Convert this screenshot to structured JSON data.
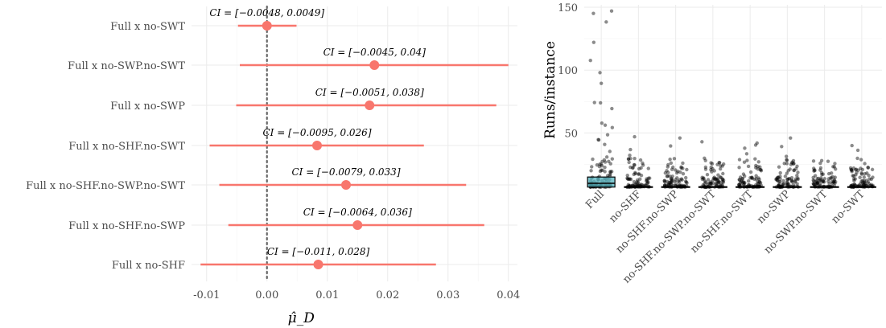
{
  "chart_data": [
    {
      "type": "interval",
      "title": "",
      "xlabel": "μ̂_D",
      "ylabel": "",
      "xlim": [
        -0.0125,
        0.0415
      ],
      "xticks": [
        -0.01,
        0.0,
        0.01,
        0.02,
        0.03,
        0.04
      ],
      "xtick_labels": [
        "-0.01",
        "0.00",
        "0.01",
        "0.02",
        "0.03",
        "0.04"
      ],
      "reference_line": 0,
      "color": "#F8766D",
      "rows": [
        {
          "label": "Full x no-SWT",
          "estimate": 0.0,
          "lower": -0.0048,
          "upper": 0.0049,
          "ci_text": "CI = [−0.0048, 0.0049]"
        },
        {
          "label": "Full x no-SWP.no-SWT",
          "estimate": 0.0178,
          "lower": -0.0045,
          "upper": 0.04,
          "ci_text": "CI = [−0.0045, 0.04]"
        },
        {
          "label": "Full x no-SWP",
          "estimate": 0.017,
          "lower": -0.0051,
          "upper": 0.038,
          "ci_text": "CI = [−0.0051, 0.038]"
        },
        {
          "label": "Full x no-SHF.no-SWT",
          "estimate": 0.0083,
          "lower": -0.0095,
          "upper": 0.026,
          "ci_text": "CI = [−0.0095, 0.026]"
        },
        {
          "label": "Full x no-SHF.no-SWP.no-SWT",
          "estimate": 0.0131,
          "lower": -0.0079,
          "upper": 0.033,
          "ci_text": "CI = [−0.0079, 0.033]"
        },
        {
          "label": "Full x no-SHF.no-SWP",
          "estimate": 0.015,
          "lower": -0.0064,
          "upper": 0.036,
          "ci_text": "CI = [−0.0064, 0.036]"
        },
        {
          "label": "Full x no-SHF",
          "estimate": 0.0085,
          "lower": -0.011,
          "upper": 0.028,
          "ci_text": "CI = [−0.011, 0.028]"
        }
      ]
    },
    {
      "type": "box+jitter",
      "title": "",
      "xlabel": "",
      "ylabel": "Runs/instance",
      "ylim": [
        0,
        155
      ],
      "yticks": [
        50,
        100,
        150
      ],
      "categories": [
        "Full",
        "no-SHF",
        "no-SHF.no-SWP",
        "no-SHF.no-SWP.no-SWT",
        "no-SHF.no-SWT",
        "no-SWP",
        "no-SWP.no-SWT",
        "no-SWT"
      ],
      "box_color": "#56B4C0",
      "box": {
        "Full": {
          "q1": 7,
          "median": 10,
          "q3": 15
        }
      },
      "min_value": 7,
      "max_points": [
        147,
        47,
        46,
        43,
        42,
        46,
        28,
        40
      ]
    }
  ]
}
